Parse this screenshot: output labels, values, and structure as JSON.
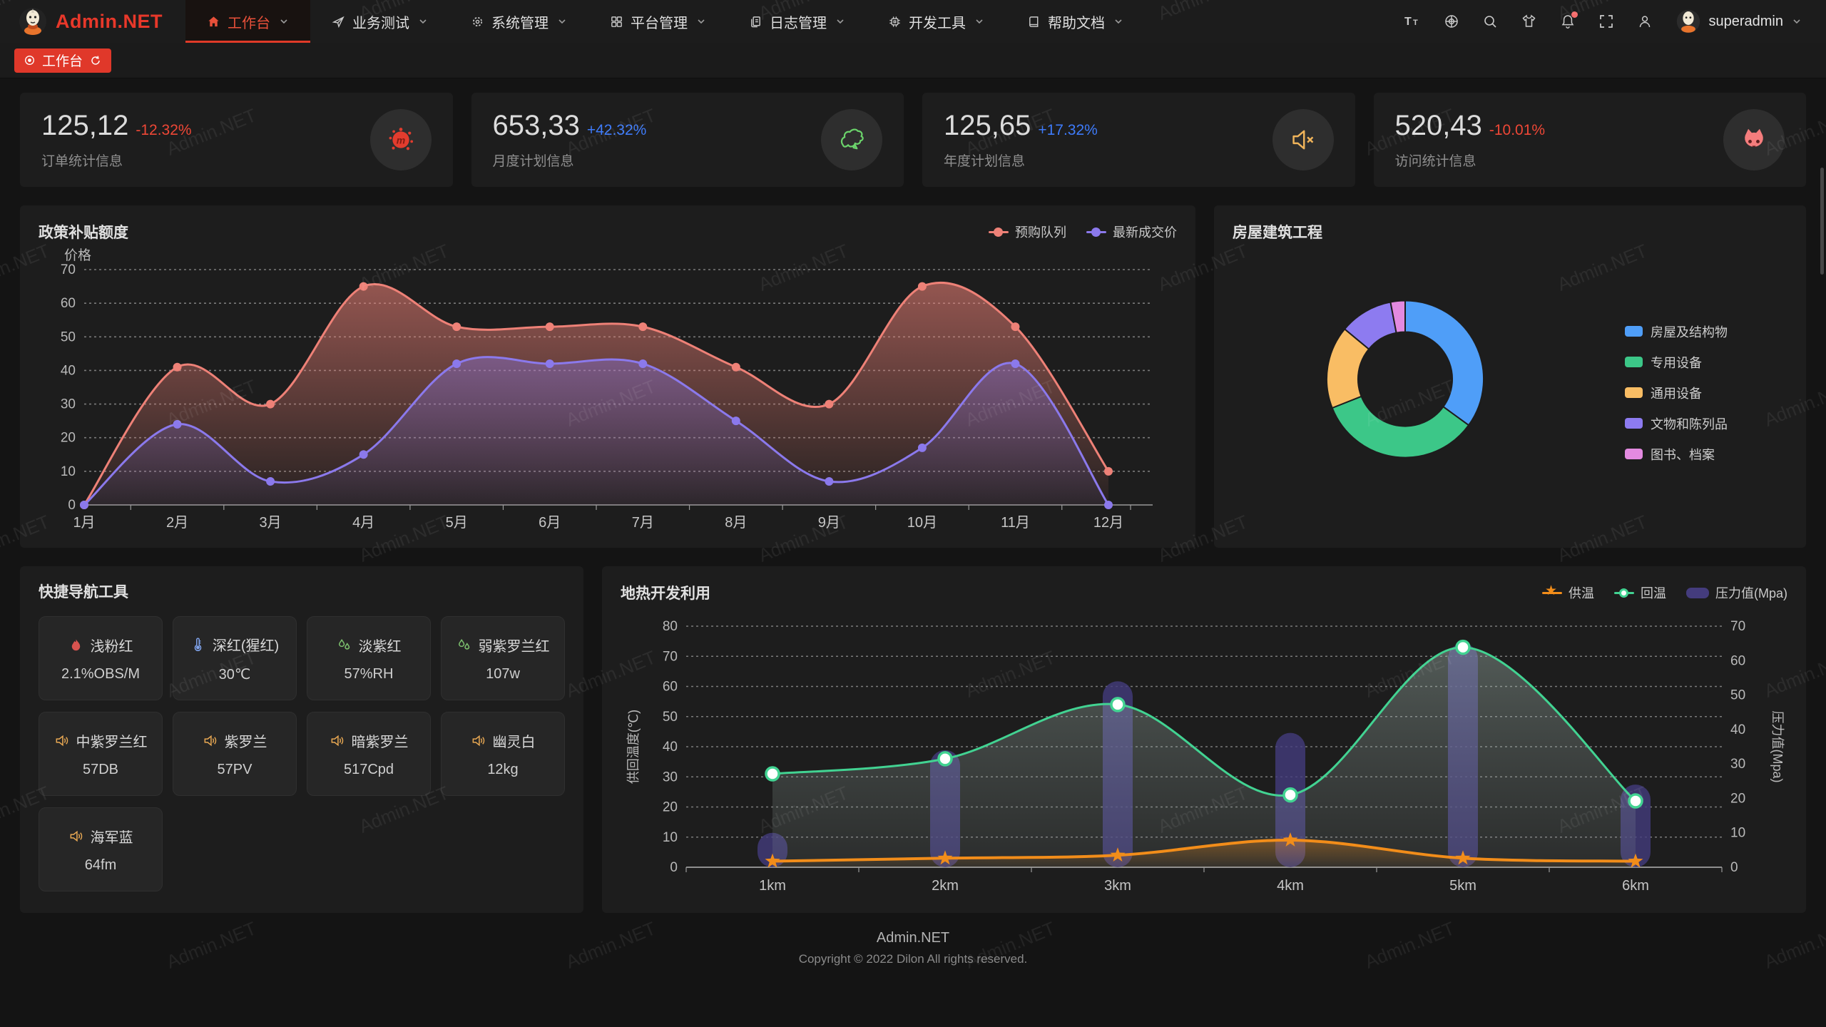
{
  "app": {
    "logo_text": "Admin.NET",
    "watermark_text": "Admin.NET"
  },
  "theme": {
    "accent": "#e0382a",
    "positive_delta": "#3e7bfa",
    "negative_delta": "#ee4736"
  },
  "header": {
    "menu": [
      {
        "label": "工作台",
        "icon": "home-icon",
        "active": true
      },
      {
        "label": "业务测试",
        "icon": "send-icon",
        "active": false
      },
      {
        "label": "系统管理",
        "icon": "gear-icon",
        "active": false
      },
      {
        "label": "平台管理",
        "icon": "grid-icon",
        "active": false
      },
      {
        "label": "日志管理",
        "icon": "copy-icon",
        "active": false
      },
      {
        "label": "开发工具",
        "icon": "chip-icon",
        "active": false
      },
      {
        "label": "帮助文档",
        "icon": "book-icon",
        "active": false
      }
    ],
    "tools": [
      "font-size-icon",
      "language-icon",
      "search-icon",
      "theme-icon",
      "notification-icon",
      "fullscreen-icon",
      "profile-icon"
    ],
    "notification_dot": true,
    "user_name": "superadmin"
  },
  "tabbar": {
    "active_tab": "工作台"
  },
  "stats": [
    {
      "value": "125,12",
      "delta": "-12.32%",
      "trend": "down",
      "label": "订单统计信息",
      "icon": "splat-icon",
      "icon_color": "#e23c2e"
    },
    {
      "value": "653,33",
      "delta": "+42.32%",
      "trend": "up",
      "label": "月度计划信息",
      "icon": "china-map-icon",
      "icon_color": "#6bd46b"
    },
    {
      "value": "125,65",
      "delta": "+17.32%",
      "trend": "up",
      "label": "年度计划信息",
      "icon": "speaker-mute-icon",
      "icon_color": "#f0b45a"
    },
    {
      "value": "520,43",
      "delta": "-10.01%",
      "trend": "down",
      "label": "访问统计信息",
      "icon": "cat-icon",
      "icon_color": "#f57d7d"
    }
  ],
  "quicknav": {
    "title": "快捷导航工具",
    "items": [
      {
        "icon": "fire-icon",
        "icon_color": "#d9534f",
        "label": "浅粉红",
        "value": "2.1%OBS/M"
      },
      {
        "icon": "thermometer-icon",
        "icon_color": "#7ea1e8",
        "label": "深红(猩红)",
        "value": "30℃"
      },
      {
        "icon": "humidity-icon",
        "icon_color": "#7cbf6d",
        "label": "淡紫红",
        "value": "57%RH"
      },
      {
        "icon": "humidity-icon",
        "icon_color": "#7cbf6d",
        "label": "弱紫罗兰红",
        "value": "107w"
      },
      {
        "icon": "speaker-icon",
        "icon_color": "#e8a853",
        "label": "中紫罗兰红",
        "value": "57DB"
      },
      {
        "icon": "speaker-icon",
        "icon_color": "#e8a853",
        "label": "紫罗兰",
        "value": "57PV"
      },
      {
        "icon": "speaker-icon",
        "icon_color": "#e8a853",
        "label": "暗紫罗兰",
        "value": "517Cpd"
      },
      {
        "icon": "speaker-icon",
        "icon_color": "#e8a853",
        "label": "幽灵白",
        "value": "12kg"
      },
      {
        "icon": "speaker-icon",
        "icon_color": "#e8a853",
        "label": "海军蓝",
        "value": "64fm"
      }
    ]
  },
  "chart_data": [
    {
      "id": "subsidy",
      "type": "line",
      "title": "政策补贴额度",
      "ylabel": "价格",
      "categories": [
        "1月",
        "2月",
        "3月",
        "4月",
        "5月",
        "6月",
        "7月",
        "8月",
        "9月",
        "10月",
        "11月",
        "12月"
      ],
      "ylim": [
        0,
        70
      ],
      "ytick_step": 10,
      "grid": true,
      "legend_position": "top-right",
      "series": [
        {
          "name": "预购队列",
          "color": "#ee8177",
          "values": [
            0,
            41,
            30,
            65,
            53,
            53,
            53,
            41,
            30,
            65,
            53,
            10
          ]
        },
        {
          "name": "最新成交价",
          "color": "#8b79ec",
          "values": [
            0,
            24,
            7,
            15,
            42,
            42,
            42,
            25,
            7,
            17,
            42,
            0
          ]
        }
      ]
    },
    {
      "id": "building",
      "type": "pie",
      "title": "房屋建筑工程",
      "donut": true,
      "legend_position": "right",
      "slices": [
        {
          "name": "房屋及结构物",
          "color": "#4f9ef8",
          "value": 35
        },
        {
          "name": "专用设备",
          "color": "#3cc788",
          "value": 34
        },
        {
          "name": "通用设备",
          "color": "#f9bd64",
          "value": 17
        },
        {
          "name": "文物和陈列品",
          "color": "#8d7bf0",
          "value": 11
        },
        {
          "name": "图书、档案",
          "color": "#e38ae0",
          "value": 3
        }
      ]
    },
    {
      "id": "geothermal",
      "type": "dual-axis",
      "title": "地热开发利用",
      "categories": [
        "1km",
        "2km",
        "3km",
        "4km",
        "5km",
        "6km"
      ],
      "left_axis": {
        "name": "供回温度(℃)",
        "min": 0,
        "max": 80,
        "step": 10
      },
      "right_axis": {
        "name": "压力值(Mpa)",
        "min": 0,
        "max": 70,
        "step": 10
      },
      "grid": true,
      "legend_position": "top-right",
      "series": [
        {
          "name": "供温",
          "type": "line",
          "axis": "left",
          "color": "#f28d1a",
          "marker": "star",
          "values": [
            2,
            3,
            4,
            9,
            3,
            2
          ]
        },
        {
          "name": "回温",
          "type": "line",
          "axis": "left",
          "color": "#42d392",
          "marker": "circle",
          "values": [
            31,
            36,
            54,
            24,
            73,
            22
          ]
        },
        {
          "name": "压力值(Mpa)",
          "type": "bar",
          "axis": "right",
          "color": "#443c7d",
          "values": [
            10,
            34,
            54,
            39,
            65,
            24
          ]
        }
      ]
    }
  ],
  "footer": {
    "line1": "Admin.NET",
    "line2": "Copyright © 2022 Dilon All rights reserved."
  }
}
